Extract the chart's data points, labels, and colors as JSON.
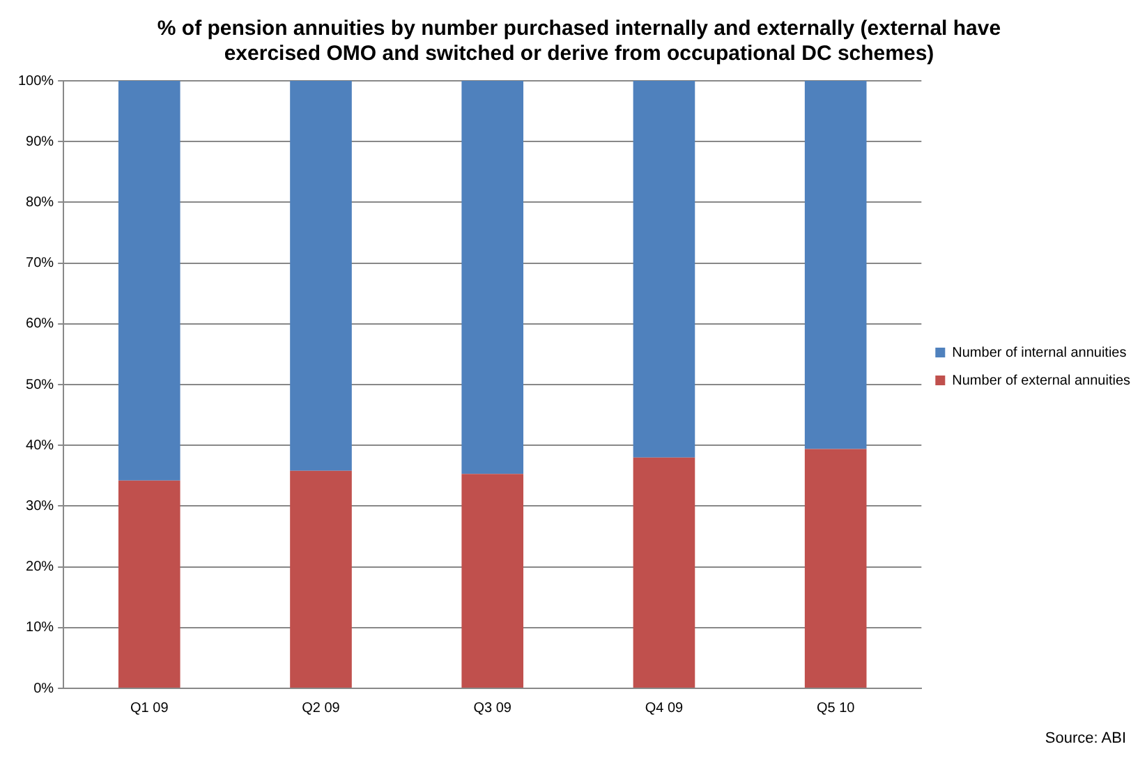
{
  "chart_data": {
    "type": "bar",
    "title": "% of pension annuities by number purchased internally and externally (external have exercised OMO and switched or derive from occupational DC schemes)",
    "categories": [
      "Q1 09",
      "Q2 09",
      "Q3 09",
      "Q4 09",
      "Q5 10"
    ],
    "series": [
      {
        "name": "Number of external annuities",
        "color": "#c0504d",
        "values": [
          34.2,
          35.8,
          35.3,
          38.0,
          39.4
        ]
      },
      {
        "name": "Number of internal annuities",
        "color": "#4f81bd",
        "values": [
          65.8,
          64.2,
          64.7,
          62.0,
          60.6
        ]
      }
    ],
    "stacked": true,
    "ylim": [
      0,
      100
    ],
    "yticks": [
      {
        "value": 0,
        "label": "0%"
      },
      {
        "value": 10,
        "label": "10%"
      },
      {
        "value": 20,
        "label": "20%"
      },
      {
        "value": 30,
        "label": "30%"
      },
      {
        "value": 40,
        "label": "40%"
      },
      {
        "value": 50,
        "label": "50%"
      },
      {
        "value": 60,
        "label": "60%"
      },
      {
        "value": 70,
        "label": "70%"
      },
      {
        "value": 80,
        "label": "80%"
      },
      {
        "value": 90,
        "label": "90%"
      },
      {
        "value": 100,
        "label": "100%"
      }
    ],
    "grid": "y",
    "legend": "right",
    "annotations": [
      "Source: ABI"
    ]
  }
}
